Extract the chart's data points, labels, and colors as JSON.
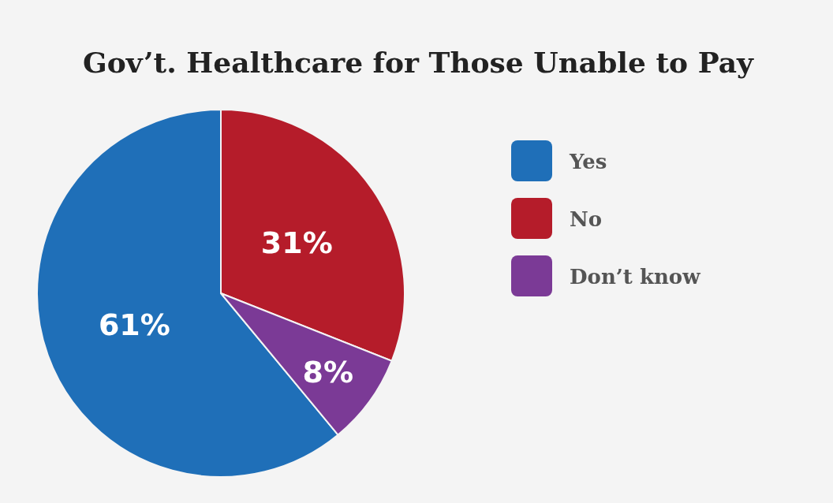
{
  "chart_data": {
    "type": "pie",
    "title": "Gov’t. Healthcare for Those Unable to Pay",
    "categories": [
      "Yes",
      "No",
      "Don’t know"
    ],
    "values": [
      61,
      31,
      8
    ],
    "colors": [
      "#1f6fb8",
      "#b51c2a",
      "#7b3a96"
    ],
    "value_labels": [
      "61%",
      "31%",
      "8%"
    ],
    "legend": "right"
  }
}
